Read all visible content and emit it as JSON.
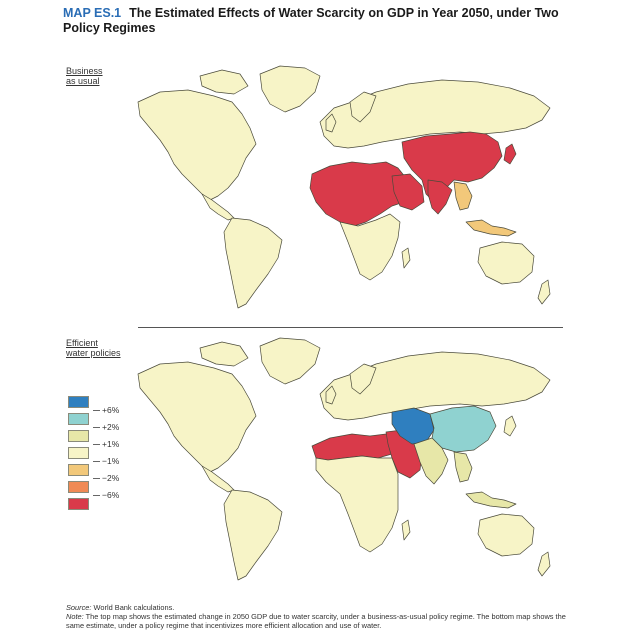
{
  "title": {
    "lead": "MAP ES.1",
    "text": "The Estimated Effects of Water Scarcity on GDP in Year 2050, under Two Policy Regimes"
  },
  "panels": [
    {
      "label_line1": "Business",
      "label_line2": "as usual"
    },
    {
      "label_line1": "Efficient",
      "label_line2": "water policies"
    }
  ],
  "legend": {
    "labels": [
      "+6%",
      "+2%",
      "+1%",
      "−1%",
      "−2%",
      "−6%"
    ],
    "swatch_colors": [
      "#2f7fbf",
      "#8fd2d0",
      "#e7e7a8",
      "#f7f4c7",
      "#f2c87a",
      "#f08a55",
      "#d93a4a"
    ]
  },
  "colors": {
    "land_neutral": "#f7f4c7",
    "light_yellow": "#e7e7a8",
    "light_orange": "#f2c87a",
    "red": "#d93a4a",
    "teal": "#8fd2d0",
    "blue": "#2f7fbf",
    "title_accent": "#2a6db5"
  },
  "footer": {
    "source_label": "Source:",
    "source_text": "World Bank calculations.",
    "note_label": "Note:",
    "note_text": "The top map shows the estimated change in 2050 GDP due to water scarcity, under a business-as-usual policy regime. The bottom map shows the same estimate, under a policy regime that incentivizes more efficient allocation and use of water."
  }
}
